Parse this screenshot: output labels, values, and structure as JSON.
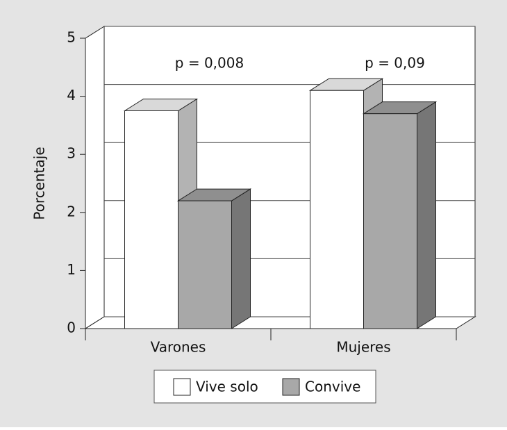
{
  "chart_data": {
    "type": "bar",
    "y_label": "Porcentaje",
    "categories": [
      "Varones",
      "Mujeres"
    ],
    "series": [
      {
        "name": "Vive solo",
        "color": "#ffffff",
        "values": [
          3.75,
          4.1
        ]
      },
      {
        "name": "Convive",
        "color": "#a8a8a8",
        "values": [
          2.2,
          3.7
        ]
      }
    ],
    "annotations": [
      "p = 0,008",
      "p = 0,09"
    ],
    "ylim": [
      0,
      5
    ],
    "yticks": [
      0,
      1,
      2,
      3,
      4,
      5
    ],
    "grid": true
  }
}
